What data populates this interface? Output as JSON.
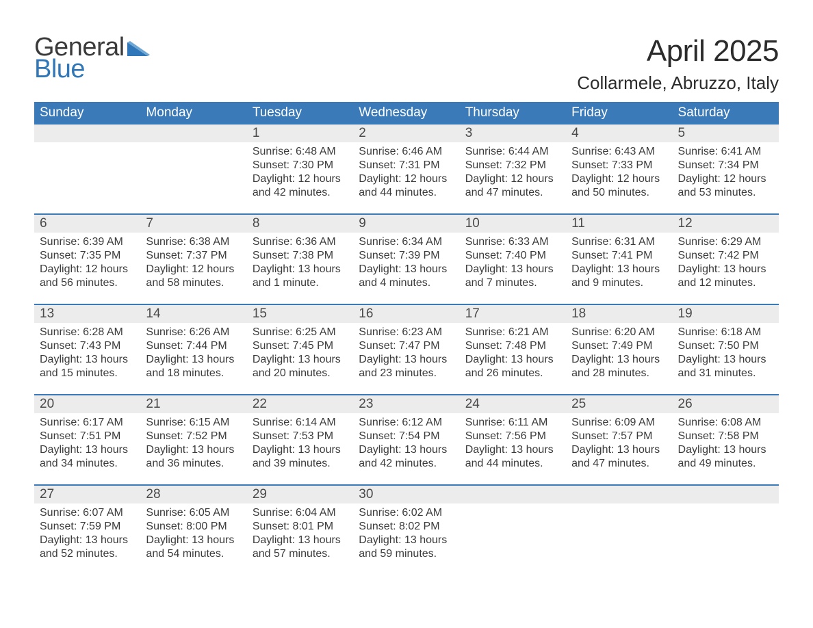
{
  "brand": {
    "line1": "General",
    "line2": "Blue",
    "accent_color": "#2f77b8"
  },
  "title": "April 2025",
  "location": "Collarmele, Abruzzo, Italy",
  "colors": {
    "header_bg": "#3a7ab8",
    "header_text": "#ffffff",
    "daynum_bg": "#ececec",
    "week_border": "#3a7ab8",
    "body_text": "#3b3b3b",
    "background": "#ffffff"
  },
  "fonts": {
    "title_size_pt": 33,
    "location_size_pt": 20,
    "dow_size_pt": 14,
    "body_size_pt": 12
  },
  "days_of_week": [
    "Sunday",
    "Monday",
    "Tuesday",
    "Wednesday",
    "Thursday",
    "Friday",
    "Saturday"
  ],
  "weeks": [
    [
      {
        "n": "",
        "sunrise": "",
        "sunset": "",
        "daylight": ""
      },
      {
        "n": "",
        "sunrise": "",
        "sunset": "",
        "daylight": ""
      },
      {
        "n": "1",
        "sunrise": "Sunrise: 6:48 AM",
        "sunset": "Sunset: 7:30 PM",
        "daylight": "Daylight: 12 hours and 42 minutes."
      },
      {
        "n": "2",
        "sunrise": "Sunrise: 6:46 AM",
        "sunset": "Sunset: 7:31 PM",
        "daylight": "Daylight: 12 hours and 44 minutes."
      },
      {
        "n": "3",
        "sunrise": "Sunrise: 6:44 AM",
        "sunset": "Sunset: 7:32 PM",
        "daylight": "Daylight: 12 hours and 47 minutes."
      },
      {
        "n": "4",
        "sunrise": "Sunrise: 6:43 AM",
        "sunset": "Sunset: 7:33 PM",
        "daylight": "Daylight: 12 hours and 50 minutes."
      },
      {
        "n": "5",
        "sunrise": "Sunrise: 6:41 AM",
        "sunset": "Sunset: 7:34 PM",
        "daylight": "Daylight: 12 hours and 53 minutes."
      }
    ],
    [
      {
        "n": "6",
        "sunrise": "Sunrise: 6:39 AM",
        "sunset": "Sunset: 7:35 PM",
        "daylight": "Daylight: 12 hours and 56 minutes."
      },
      {
        "n": "7",
        "sunrise": "Sunrise: 6:38 AM",
        "sunset": "Sunset: 7:37 PM",
        "daylight": "Daylight: 12 hours and 58 minutes."
      },
      {
        "n": "8",
        "sunrise": "Sunrise: 6:36 AM",
        "sunset": "Sunset: 7:38 PM",
        "daylight": "Daylight: 13 hours and 1 minute."
      },
      {
        "n": "9",
        "sunrise": "Sunrise: 6:34 AM",
        "sunset": "Sunset: 7:39 PM",
        "daylight": "Daylight: 13 hours and 4 minutes."
      },
      {
        "n": "10",
        "sunrise": "Sunrise: 6:33 AM",
        "sunset": "Sunset: 7:40 PM",
        "daylight": "Daylight: 13 hours and 7 minutes."
      },
      {
        "n": "11",
        "sunrise": "Sunrise: 6:31 AM",
        "sunset": "Sunset: 7:41 PM",
        "daylight": "Daylight: 13 hours and 9 minutes."
      },
      {
        "n": "12",
        "sunrise": "Sunrise: 6:29 AM",
        "sunset": "Sunset: 7:42 PM",
        "daylight": "Daylight: 13 hours and 12 minutes."
      }
    ],
    [
      {
        "n": "13",
        "sunrise": "Sunrise: 6:28 AM",
        "sunset": "Sunset: 7:43 PM",
        "daylight": "Daylight: 13 hours and 15 minutes."
      },
      {
        "n": "14",
        "sunrise": "Sunrise: 6:26 AM",
        "sunset": "Sunset: 7:44 PM",
        "daylight": "Daylight: 13 hours and 18 minutes."
      },
      {
        "n": "15",
        "sunrise": "Sunrise: 6:25 AM",
        "sunset": "Sunset: 7:45 PM",
        "daylight": "Daylight: 13 hours and 20 minutes."
      },
      {
        "n": "16",
        "sunrise": "Sunrise: 6:23 AM",
        "sunset": "Sunset: 7:47 PM",
        "daylight": "Daylight: 13 hours and 23 minutes."
      },
      {
        "n": "17",
        "sunrise": "Sunrise: 6:21 AM",
        "sunset": "Sunset: 7:48 PM",
        "daylight": "Daylight: 13 hours and 26 minutes."
      },
      {
        "n": "18",
        "sunrise": "Sunrise: 6:20 AM",
        "sunset": "Sunset: 7:49 PM",
        "daylight": "Daylight: 13 hours and 28 minutes."
      },
      {
        "n": "19",
        "sunrise": "Sunrise: 6:18 AM",
        "sunset": "Sunset: 7:50 PM",
        "daylight": "Daylight: 13 hours and 31 minutes."
      }
    ],
    [
      {
        "n": "20",
        "sunrise": "Sunrise: 6:17 AM",
        "sunset": "Sunset: 7:51 PM",
        "daylight": "Daylight: 13 hours and 34 minutes."
      },
      {
        "n": "21",
        "sunrise": "Sunrise: 6:15 AM",
        "sunset": "Sunset: 7:52 PM",
        "daylight": "Daylight: 13 hours and 36 minutes."
      },
      {
        "n": "22",
        "sunrise": "Sunrise: 6:14 AM",
        "sunset": "Sunset: 7:53 PM",
        "daylight": "Daylight: 13 hours and 39 minutes."
      },
      {
        "n": "23",
        "sunrise": "Sunrise: 6:12 AM",
        "sunset": "Sunset: 7:54 PM",
        "daylight": "Daylight: 13 hours and 42 minutes."
      },
      {
        "n": "24",
        "sunrise": "Sunrise: 6:11 AM",
        "sunset": "Sunset: 7:56 PM",
        "daylight": "Daylight: 13 hours and 44 minutes."
      },
      {
        "n": "25",
        "sunrise": "Sunrise: 6:09 AM",
        "sunset": "Sunset: 7:57 PM",
        "daylight": "Daylight: 13 hours and 47 minutes."
      },
      {
        "n": "26",
        "sunrise": "Sunrise: 6:08 AM",
        "sunset": "Sunset: 7:58 PM",
        "daylight": "Daylight: 13 hours and 49 minutes."
      }
    ],
    [
      {
        "n": "27",
        "sunrise": "Sunrise: 6:07 AM",
        "sunset": "Sunset: 7:59 PM",
        "daylight": "Daylight: 13 hours and 52 minutes."
      },
      {
        "n": "28",
        "sunrise": "Sunrise: 6:05 AM",
        "sunset": "Sunset: 8:00 PM",
        "daylight": "Daylight: 13 hours and 54 minutes."
      },
      {
        "n": "29",
        "sunrise": "Sunrise: 6:04 AM",
        "sunset": "Sunset: 8:01 PM",
        "daylight": "Daylight: 13 hours and 57 minutes."
      },
      {
        "n": "30",
        "sunrise": "Sunrise: 6:02 AM",
        "sunset": "Sunset: 8:02 PM",
        "daylight": "Daylight: 13 hours and 59 minutes."
      },
      {
        "n": "",
        "sunrise": "",
        "sunset": "",
        "daylight": ""
      },
      {
        "n": "",
        "sunrise": "",
        "sunset": "",
        "daylight": ""
      },
      {
        "n": "",
        "sunrise": "",
        "sunset": "",
        "daylight": ""
      }
    ]
  ]
}
